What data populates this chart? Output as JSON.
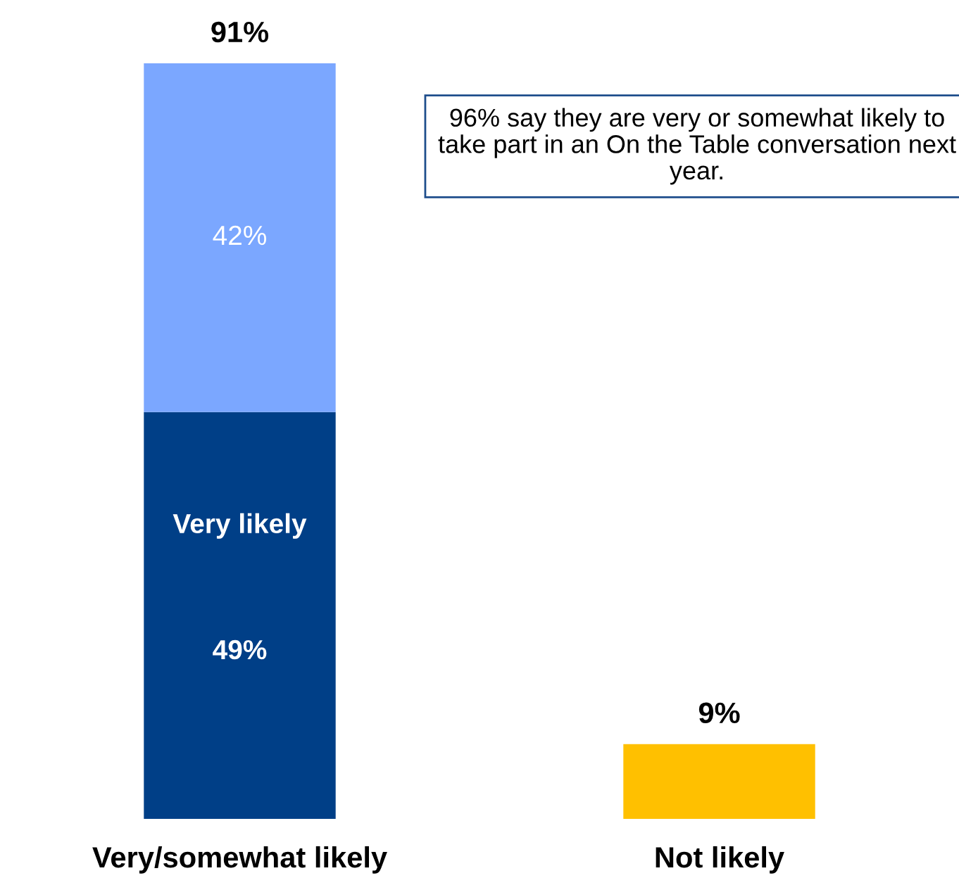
{
  "chart_data": {
    "type": "bar",
    "stacked": true,
    "categories": [
      "Very/somewhat likely",
      "Not likely"
    ],
    "series": [
      {
        "name": "Very likely",
        "color": "#003f87",
        "values": [
          49,
          null
        ],
        "value_labels": [
          "49%",
          null
        ]
      },
      {
        "color": "#7ba7ff",
        "values": [
          42,
          null
        ],
        "value_labels": [
          "42%",
          null
        ]
      },
      {
        "color": "#ffc000",
        "values": [
          null,
          9
        ]
      }
    ],
    "totals": [
      "91%",
      "9%"
    ],
    "annotations": [
      "96% say they are very or somewhat likely to take part in an On the Table conversation next year."
    ]
  }
}
